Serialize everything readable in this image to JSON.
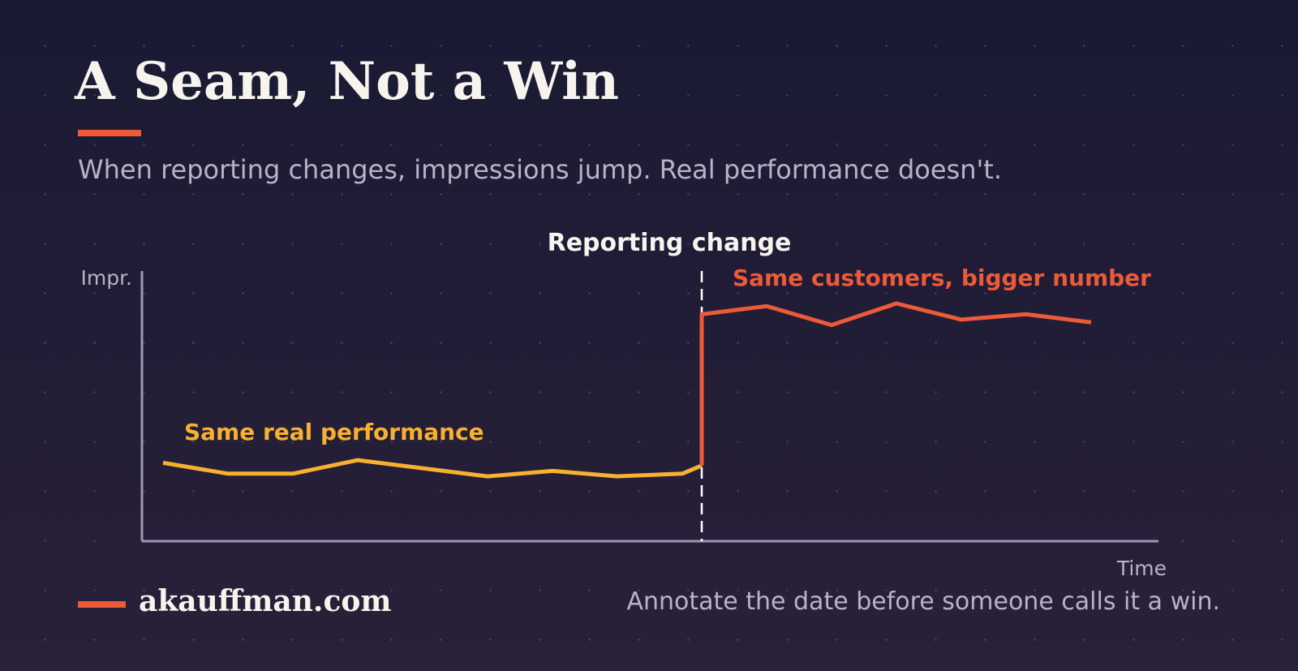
{
  "title": "A Seam, Not a Win",
  "subtitle": "When reporting changes, impressions jump. Real performance doesn't.",
  "footer": {
    "brand": "akauffman.com",
    "note": "Annotate the date before someone calls it a win."
  },
  "colors": {
    "accent": "#ec5a38",
    "before_series": "#f7b02f",
    "after_series": "#ec5a38",
    "axis": "#9b98b8",
    "text_muted": "#b8b3c8",
    "text_light": "#f7f4ee"
  },
  "chart_data": {
    "type": "line",
    "xlabel": "Time",
    "ylabel": "Impr.",
    "x_ticks_shown": false,
    "y_ticks_shown": false,
    "grid": false,
    "ylim": [
      0,
      100
    ],
    "annotation": {
      "label": "Reporting change",
      "x": 9,
      "style": "dashed-vertical-line"
    },
    "series": [
      {
        "name": "Same real performance",
        "color": "#f7b02f",
        "x": [
          0,
          1,
          2,
          3,
          4,
          5,
          6,
          7,
          8,
          8.3
        ],
        "values": [
          29,
          25,
          25,
          30,
          27,
          24,
          26,
          24,
          25,
          28
        ]
      },
      {
        "name": "Same customers, bigger number",
        "color": "#ec5a38",
        "x": [
          8.3,
          8.3,
          9.3,
          10.3,
          11.3,
          12.3,
          13.3,
          14.3
        ],
        "values": [
          28,
          84,
          87,
          80,
          88,
          82,
          84,
          81
        ]
      }
    ]
  }
}
